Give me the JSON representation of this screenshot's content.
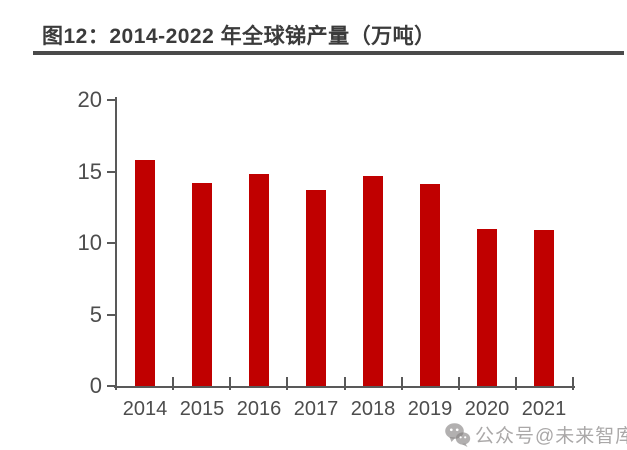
{
  "figure": {
    "title": "图12：2014-2022 年全球锑产量（万吨）"
  },
  "watermark": {
    "icon": "wechat-logo",
    "text": "公众号@未来智库"
  },
  "chart_data": {
    "type": "bar",
    "title": "图12：2014-2022 年全球锑产量（万吨）",
    "categories": [
      "2014",
      "2015",
      "2016",
      "2017",
      "2018",
      "2019",
      "2020",
      "2021"
    ],
    "values": [
      15.8,
      14.2,
      14.8,
      13.7,
      14.7,
      14.1,
      11.0,
      10.9
    ],
    "xlabel": "",
    "ylabel": "",
    "ylim": [
      0,
      20
    ],
    "yticks": [
      0,
      5,
      10,
      15,
      20
    ],
    "grid": false,
    "legend": "none",
    "bar_color": "#c00000",
    "axis_color": "#595959",
    "tick_label_color": "#4d4d4d"
  }
}
